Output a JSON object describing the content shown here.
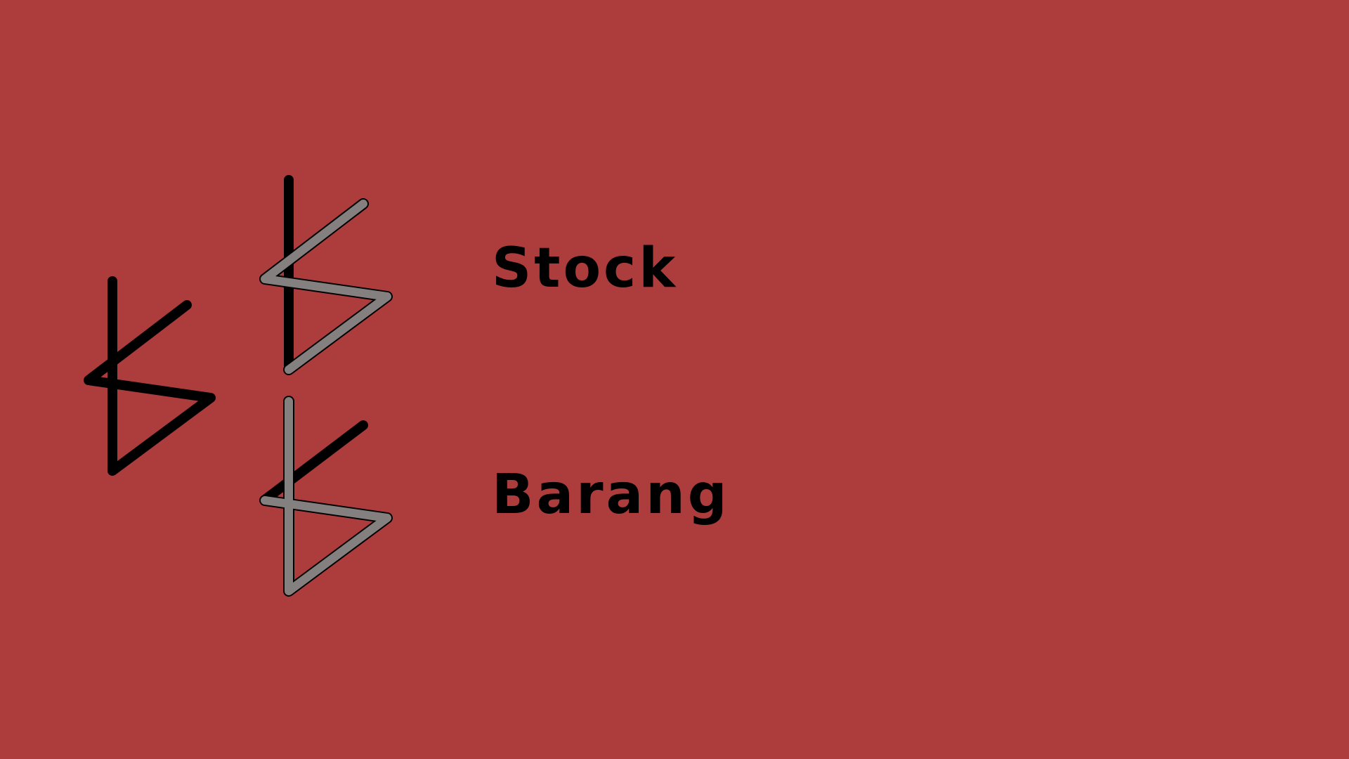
{
  "background_color": "#ad3c3c",
  "logo": {
    "icon_name": "stacked-b-glyph-logo",
    "stroke_colors": {
      "dark": "#000000",
      "light": "#848080"
    }
  },
  "words": {
    "top": "Stock",
    "bottom": "Barang"
  }
}
